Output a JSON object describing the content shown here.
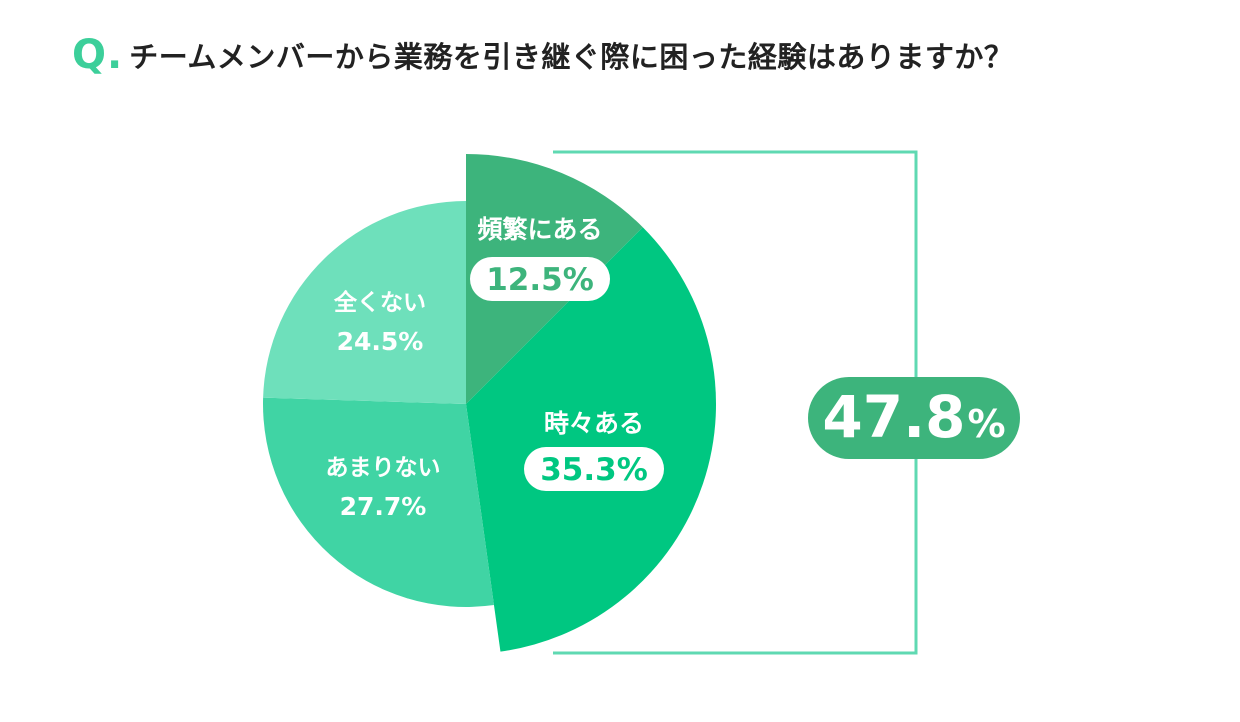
{
  "header": {
    "q_mark": "Q.",
    "title": "チームメンバーから業務を引き継ぐ際に困った経験はありますか？"
  },
  "chart_data": {
    "type": "pie",
    "title": "チームメンバーから業務を引き継ぐ際に困った経験はありますか？",
    "slices": [
      {
        "label": "頻繁にある",
        "value": 12.5,
        "value_label": "12.5%",
        "color": "#3db47c",
        "exploded": true
      },
      {
        "label": "時々ある",
        "value": 35.3,
        "value_label": "35.3%",
        "color": "#00c781",
        "exploded": true
      },
      {
        "label": "あまりない",
        "value": 27.7,
        "value_label": "27.7%",
        "color": "#40d4a4",
        "exploded": false
      },
      {
        "label": "全くない",
        "value": 24.5,
        "value_label": "24.5%",
        "color": "#6ee0bb",
        "exploded": false
      }
    ],
    "summary": {
      "value": 47.8,
      "number_label": "47.8",
      "unit": "%",
      "color": "#3db47c"
    },
    "bracket_color": "#5fd9b2"
  }
}
